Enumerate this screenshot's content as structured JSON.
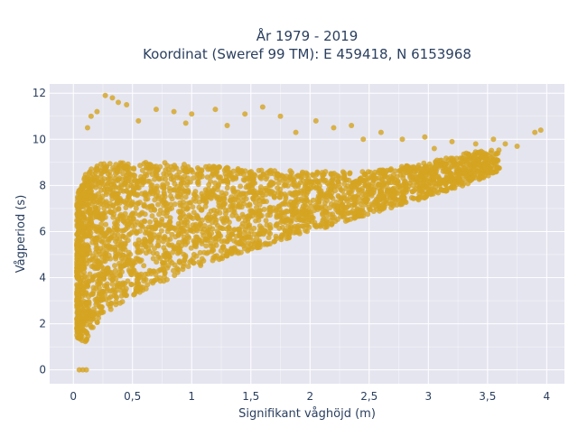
{
  "chart_data": {
    "type": "scatter",
    "title": [
      "År 1979 - 2019",
      "Koordinat (Sweref 99 TM): E 459418, N 6153968"
    ],
    "xlabel": "Signifikant våghöjd (m)",
    "ylabel": "Vågperiod (s)",
    "xlim": [
      -0.2,
      4.15
    ],
    "ylim": [
      -0.6,
      12.4
    ],
    "x_ticks": [
      0,
      0.5,
      1,
      1.5,
      2,
      2.5,
      3,
      3.5,
      4
    ],
    "x_tick_labels": [
      "0",
      "0,5",
      "1",
      "1,5",
      "2",
      "2,5",
      "3",
      "3,5",
      "4"
    ],
    "y_ticks": [
      0,
      2,
      4,
      6,
      8,
      10,
      12
    ],
    "y_tick_labels": [
      "0",
      "2",
      "4",
      "6",
      "8",
      "10",
      "12"
    ],
    "grid": true,
    "marker_color": "#d4a421",
    "background": "#e5e5f0",
    "density_envelope": [
      {
        "x": 0.03,
        "y_low": 1.4,
        "y_high": 7.5
      },
      {
        "x": 0.1,
        "y_low": 1.2,
        "y_high": 8.6
      },
      {
        "x": 0.25,
        "y_low": 2.4,
        "y_high": 9.0
      },
      {
        "x": 0.5,
        "y_low": 3.2,
        "y_high": 9.0
      },
      {
        "x": 0.75,
        "y_low": 3.8,
        "y_high": 9.0
      },
      {
        "x": 1.0,
        "y_low": 4.4,
        "y_high": 8.9
      },
      {
        "x": 1.5,
        "y_low": 5.2,
        "y_high": 8.7
      },
      {
        "x": 2.0,
        "y_low": 6.0,
        "y_high": 8.6
      },
      {
        "x": 2.5,
        "y_low": 6.7,
        "y_high": 8.6
      },
      {
        "x": 3.0,
        "y_low": 7.5,
        "y_high": 9.0
      },
      {
        "x": 3.3,
        "y_low": 8.0,
        "y_high": 9.4
      },
      {
        "x": 3.6,
        "y_low": 8.6,
        "y_high": 9.6
      }
    ],
    "outlier_points": [
      {
        "x": 0.05,
        "y": 0
      },
      {
        "x": 0.08,
        "y": 0
      },
      {
        "x": 0.11,
        "y": 0
      },
      {
        "x": 0.27,
        "y": 11.9
      },
      {
        "x": 0.33,
        "y": 11.8
      },
      {
        "x": 0.38,
        "y": 11.6
      },
      {
        "x": 0.45,
        "y": 11.5
      },
      {
        "x": 0.2,
        "y": 11.2
      },
      {
        "x": 0.7,
        "y": 11.3
      },
      {
        "x": 0.85,
        "y": 11.2
      },
      {
        "x": 1.0,
        "y": 11.1
      },
      {
        "x": 1.2,
        "y": 11.3
      },
      {
        "x": 1.45,
        "y": 11.1
      },
      {
        "x": 1.6,
        "y": 11.4
      },
      {
        "x": 1.75,
        "y": 11.0
      },
      {
        "x": 2.05,
        "y": 10.8
      },
      {
        "x": 2.2,
        "y": 10.5
      },
      {
        "x": 2.35,
        "y": 10.6
      },
      {
        "x": 2.6,
        "y": 10.3
      },
      {
        "x": 2.78,
        "y": 10.0
      },
      {
        "x": 2.97,
        "y": 10.1
      },
      {
        "x": 3.2,
        "y": 9.9
      },
      {
        "x": 3.4,
        "y": 9.8
      },
      {
        "x": 3.65,
        "y": 9.8
      },
      {
        "x": 3.75,
        "y": 9.7
      },
      {
        "x": 3.9,
        "y": 10.3
      },
      {
        "x": 3.95,
        "y": 10.4
      },
      {
        "x": 0.12,
        "y": 10.5
      },
      {
        "x": 0.15,
        "y": 11.0
      },
      {
        "x": 0.55,
        "y": 10.8
      },
      {
        "x": 0.95,
        "y": 10.7
      },
      {
        "x": 1.3,
        "y": 10.6
      },
      {
        "x": 1.88,
        "y": 10.3
      },
      {
        "x": 2.45,
        "y": 10.0
      },
      {
        "x": 3.55,
        "y": 10.0
      },
      {
        "x": 3.05,
        "y": 9.6
      }
    ]
  }
}
